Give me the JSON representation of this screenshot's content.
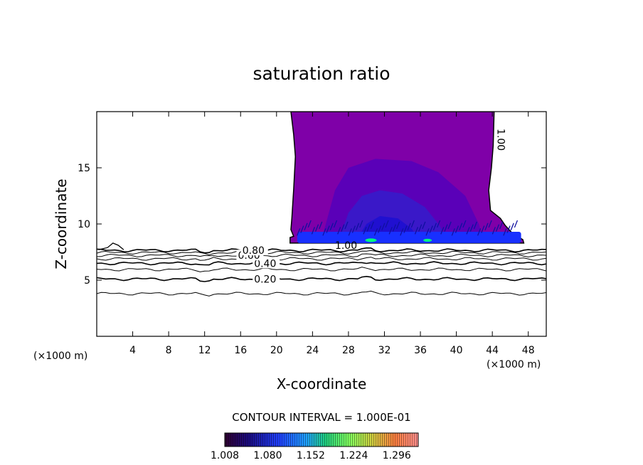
{
  "chart_data": {
    "type": "contour",
    "title": "saturation ratio",
    "xlabel": "X-coordinate",
    "ylabel": "Z-coordinate",
    "x_unit_left": "(×1000 m)",
    "x_unit_right": "(×1000 m)",
    "xlim": [
      0,
      50
    ],
    "ylim": [
      0,
      20
    ],
    "x_ticks": [
      {
        "value": 4,
        "label": "4"
      },
      {
        "value": 8,
        "label": "8"
      },
      {
        "value": 12,
        "label": "12"
      },
      {
        "value": 16,
        "label": "16"
      },
      {
        "value": 20,
        "label": "20"
      },
      {
        "value": 24,
        "label": "24"
      },
      {
        "value": 28,
        "label": "28"
      },
      {
        "value": 32,
        "label": "32"
      },
      {
        "value": 36,
        "label": "36"
      },
      {
        "value": 40,
        "label": "40"
      },
      {
        "value": 44,
        "label": "44"
      },
      {
        "value": 48,
        "label": "48"
      }
    ],
    "y_ticks": [
      {
        "value": 5,
        "label": "5"
      },
      {
        "value": 10,
        "label": "10"
      },
      {
        "value": 15,
        "label": "15"
      }
    ],
    "contour_lines": [
      {
        "level": 0.1,
        "z": 3.8
      },
      {
        "level": 0.2,
        "z": 5.1,
        "label": "0.20",
        "label_x": 17.5
      },
      {
        "level": 0.3,
        "z": 5.95
      },
      {
        "level": 0.4,
        "z": 6.5,
        "label": "0.40",
        "label_x": 17.5
      },
      {
        "level": 0.5,
        "z": 6.9
      },
      {
        "level": 0.6,
        "z": 7.2,
        "label": "0.60",
        "label_x": 15.7
      },
      {
        "level": 0.7,
        "z": 7.45
      },
      {
        "level": 0.8,
        "z": 7.65,
        "label": "0.80",
        "label_x": 16.2
      }
    ],
    "cloud_boundary_label": "1.00",
    "cloud_boundary_label_pos": [
      26.5,
      8.1
    ],
    "cloud_top_label": "1.00",
    "cloud_top_label_pos": [
      44.2,
      17.5
    ],
    "contour_interval_text": "CONTOUR INTERVAL = 1.000E-01",
    "colorbar": {
      "min": 1.008,
      "max": 1.332,
      "labels": [
        "1.008",
        "1.080",
        "1.152",
        "1.224",
        "1.296"
      ],
      "label_values": [
        1.008,
        1.08,
        1.152,
        1.224,
        1.296
      ]
    },
    "colors": {
      "cloud_purple": "#7f00a8",
      "cloud_deep": "#5a00b8",
      "cloud_blue": "#3a18c8",
      "cloud_navy": "#2010d0",
      "base_blue": "#1830ff",
      "base_green": "#00ff80"
    }
  }
}
